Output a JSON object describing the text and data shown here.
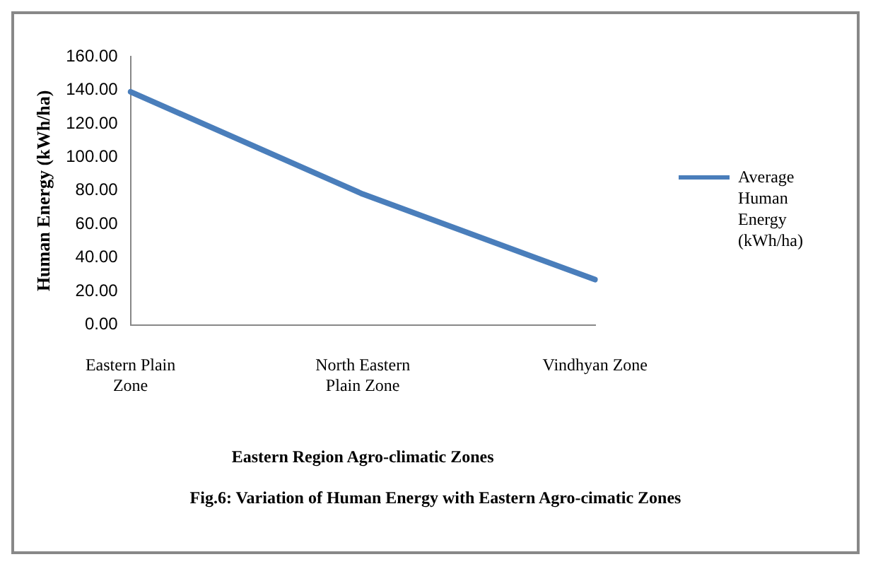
{
  "chart_data": {
    "type": "line",
    "xlabel": "Eastern Region Agro-climatic Zones",
    "ylabel": "Human Energy (kWh/ha)",
    "annotations": [
      "Fig.6: Variation of Human Energy with Eastern Agro-cimatic Zones"
    ],
    "categories": [
      "Eastern Plain Zone",
      "North Eastern Plain Zone",
      "Vindhyan Zone"
    ],
    "series": [
      {
        "name": "Average Human Energy (kWh/ha)",
        "color": "#4a7ebb",
        "values": [
          139,
          78,
          27
        ]
      }
    ],
    "ylim": [
      0,
      160
    ],
    "yticks": [
      {
        "value": 0,
        "label": "0.00"
      },
      {
        "value": 20,
        "label": "20.00"
      },
      {
        "value": 40,
        "label": "40.00"
      },
      {
        "value": 60,
        "label": "60.00"
      },
      {
        "value": 80,
        "label": "80.00"
      },
      {
        "value": 100,
        "label": "100.00"
      },
      {
        "value": 120,
        "label": "120.00"
      },
      {
        "value": 140,
        "label": "140.00"
      },
      {
        "value": 160,
        "label": "160.00"
      }
    ],
    "grid": false,
    "legend": "right",
    "marker": "none",
    "line_style": "solid"
  }
}
